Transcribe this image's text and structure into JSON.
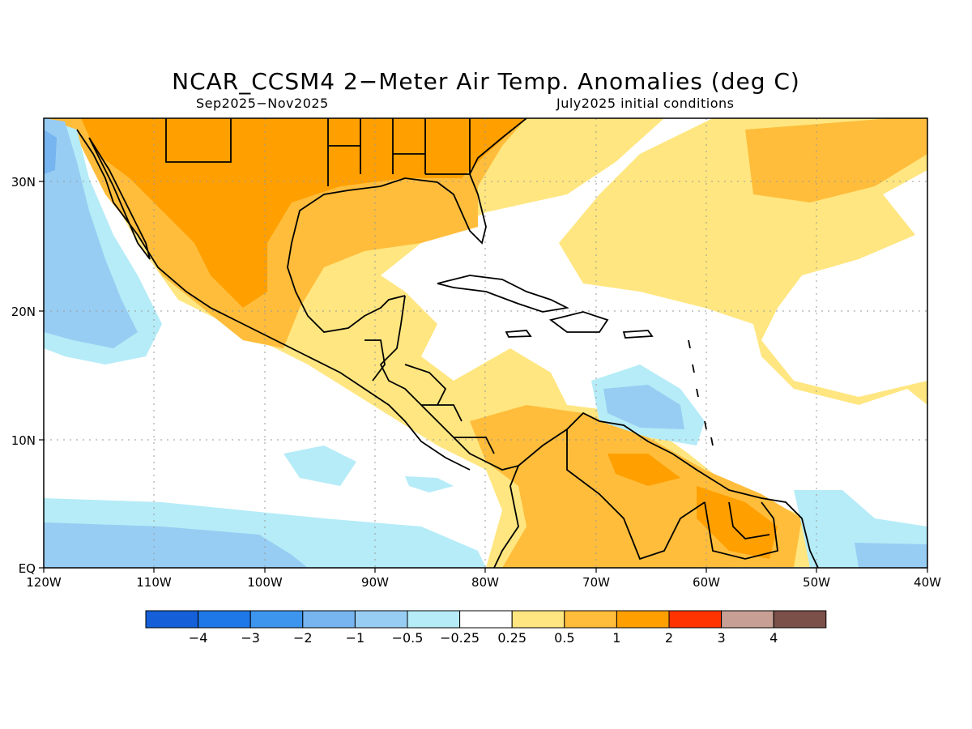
{
  "title": "NCAR_CCSM4 2−Meter Air Temp. Anomalies (deg C)",
  "subtitle_left": "Sep2025−Nov2025",
  "subtitle_right": "July2025 initial conditions",
  "lat_labels": [
    "EQ",
    "10N",
    "20N",
    "30N"
  ],
  "lon_labels": [
    "120W",
    "110W",
    "100W",
    "90W",
    "80W",
    "70W",
    "60W",
    "50W",
    "40W"
  ],
  "colorbar": {
    "labels": [
      "−4",
      "−3",
      "−2",
      "−1",
      "−0.5",
      "−0.25",
      "0.25",
      "0.5",
      "1",
      "2",
      "3",
      "4"
    ],
    "colors": [
      "#1560d8",
      "#1f78e8",
      "#3d95ee",
      "#76b5ef",
      "#98cdf3",
      "#b5ecf7",
      "#ffffff",
      "#ffe680",
      "#ffbd3b",
      "#ff9f00",
      "#ff3300",
      "#c79f94",
      "#7b5048"
    ]
  },
  "colors": {
    "anom_0.5_1": "#ffbd3b",
    "anom_1_2": "#ff9f00",
    "anom_0.25_0.5": "#ffe680",
    "anom_neg0.25": "#b5ecf7",
    "anom_neg0.5": "#98cdf3",
    "anom_neg1": "#76b5ef"
  }
}
